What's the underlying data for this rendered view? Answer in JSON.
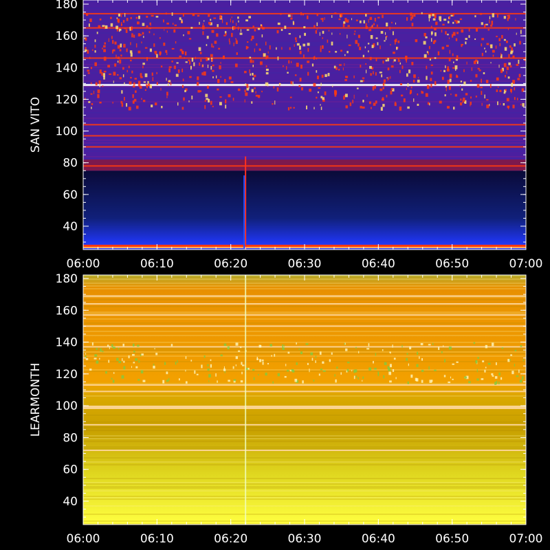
{
  "chart_data": [
    {
      "type": "heatmap",
      "station": "SAN VITO",
      "ylabel": "SAN VITO",
      "x_ticks": [
        "06:00",
        "06:10",
        "06:20",
        "06:30",
        "06:40",
        "06:50",
        "07:00"
      ],
      "x_range": [
        "06:00",
        "07:00"
      ],
      "y_ticks": [
        40,
        60,
        80,
        100,
        120,
        140,
        160,
        180
      ],
      "ylim": [
        25,
        180
      ],
      "colors": {
        "low_band": "#0a0a38",
        "low_band_bottom": "#1e33e6",
        "high_band": "#4b1fa0",
        "interference": "#ff3a10",
        "strong_interference": "#ffe070"
      },
      "low_band_top_mhz": 75,
      "burst_time": "06:22",
      "strong_lines_mhz": [
        174,
        165,
        146,
        129,
        104,
        97,
        90,
        78
      ]
    },
    {
      "type": "heatmap",
      "station": "LEARMONTH",
      "ylabel": "LEARMONTH",
      "x_ticks": [
        "06:00",
        "06:10",
        "06:20",
        "06:30",
        "06:40",
        "06:50",
        "07:00"
      ],
      "x_range": [
        "06:00",
        "07:00"
      ],
      "y_ticks": [
        40,
        60,
        80,
        100,
        120,
        140,
        160,
        180
      ],
      "ylim": [
        25,
        180
      ],
      "colors": {
        "high": "#f2a000",
        "mid": "#c8a000",
        "low": "#ffff40",
        "lines": "#ffd9a0",
        "green_lines": "#7fcc40"
      },
      "burst_time": "06:22",
      "strong_lines_mhz": [
        169,
        164,
        157,
        150,
        137,
        113,
        109,
        99,
        88,
        72
      ]
    }
  ]
}
